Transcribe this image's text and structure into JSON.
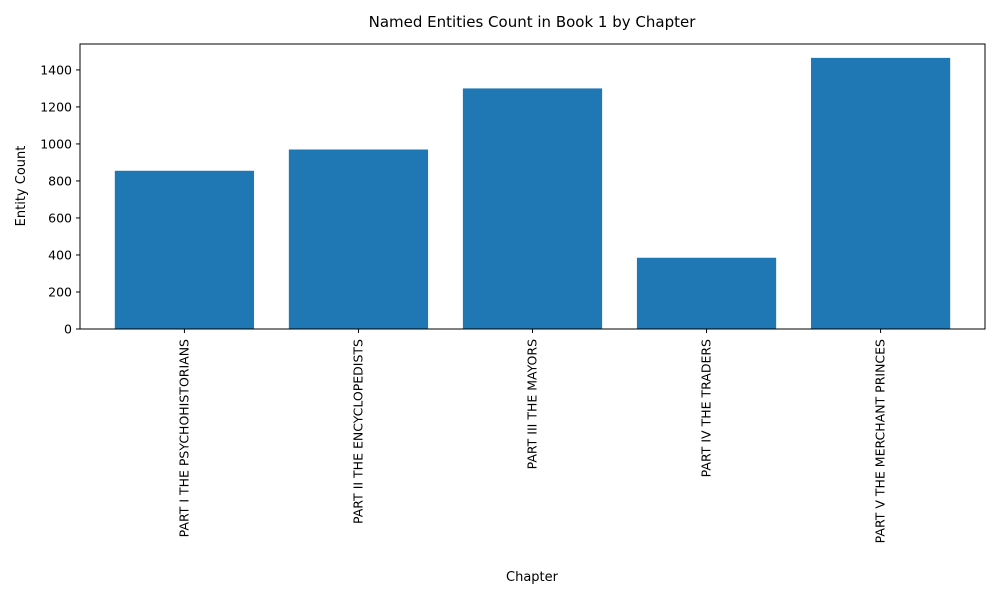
{
  "chart_data": {
    "type": "bar",
    "title": "Named Entities Count in Book 1 by Chapter",
    "xlabel": "Chapter",
    "ylabel": "Entity Count",
    "categories": [
      "PART I THE PSYCHOHISTORIANS",
      "PART II THE ENCYCLOPEDISTS",
      "PART III THE MAYORS",
      "PART IV THE TRADERS",
      "PART V THE MERCHANT PRINCES"
    ],
    "values": [
      855,
      970,
      1300,
      385,
      1465
    ],
    "ylim": [
      0,
      1540
    ],
    "yticks": [
      0,
      200,
      400,
      600,
      800,
      1000,
      1200,
      1400
    ],
    "bar_color": "#1f77b4",
    "grid": false,
    "legend": "none"
  }
}
